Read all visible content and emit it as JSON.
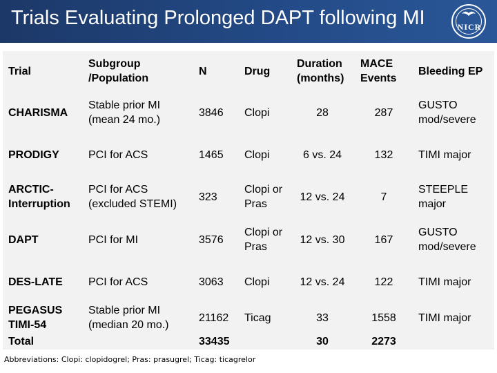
{
  "header": {
    "title": "Trials Evaluating Prolonged DAPT following MI",
    "logo_text": "NICR",
    "background": "#234a86"
  },
  "table": {
    "columns": [
      "Trial",
      "Subgroup /Population",
      "N",
      "Drug",
      "Duration (months)",
      "MACE Events",
      "Bleeding EP"
    ],
    "rows": [
      {
        "trial": "CHARISMA",
        "subgroup": "Stable prior MI (mean 24 mo.)",
        "n": "3846",
        "drug": "Clopi",
        "duration": "28",
        "mace": "287",
        "bleeding": "GUSTO mod/severe"
      },
      {
        "trial": "PRODIGY",
        "subgroup": "PCI for ACS",
        "n": "1465",
        "drug": "Clopi",
        "duration": "6 vs. 24",
        "mace": "132",
        "bleeding": "TIMI major"
      },
      {
        "trial": "ARCTIC-Interruption",
        "subgroup": "PCI for ACS (excluded STEMI)",
        "n": "323",
        "drug": "Clopi or Pras",
        "duration": "12 vs. 24",
        "mace": "7",
        "bleeding": "STEEPLE major"
      },
      {
        "trial": "DAPT",
        "subgroup": "PCI for MI",
        "n": "3576",
        "drug": "Clopi or Pras",
        "duration": "12 vs. 30",
        "mace": "167",
        "bleeding": "GUSTO mod/severe"
      },
      {
        "trial": "DES-LATE",
        "subgroup": "PCI for ACS",
        "n": "3063",
        "drug": "Clopi",
        "duration": "12 vs. 24",
        "mace": "122",
        "bleeding": "TIMI major"
      },
      {
        "trial": "PEGASUS TIMI-54",
        "subgroup": "Stable prior MI (median 20 mo.)",
        "n": "21162",
        "drug": "Ticag",
        "duration": "33",
        "mace": "1558",
        "bleeding": "TIMI major"
      }
    ],
    "total": {
      "label": "Total",
      "n": "33435",
      "duration": "30",
      "mace": "2273"
    }
  },
  "footer": {
    "abbreviations": "Abbreviations: Clopi: clopidogrel; Pras: prasugrel; Ticag: ticagrelor"
  }
}
